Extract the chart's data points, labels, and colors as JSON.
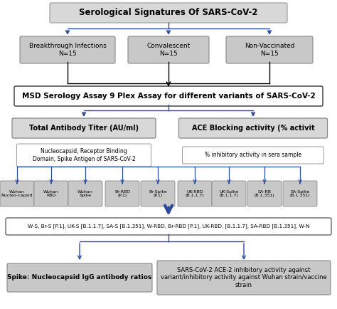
{
  "background_color": "#ffffff",
  "arrow_color_blue": "#2a4a9f",
  "arrow_color_black": "#000000",
  "box_fill_light": "#d8d8d8",
  "box_fill_gray": "#c8c8c8",
  "box_fill_white": "#ffffff",
  "title_box": "Serological Signatures Of SARS-CoV-2",
  "level1_boxes": [
    "Breakthrough Infections\nN=15",
    "Convalescent\nN=15",
    "Non-Vaccinated\nN=15"
  ],
  "level2_box": "MSD Serology Assay 9 Plex Assay for different variants of SARS-CoV-2",
  "level3_left": "Total Antibody Titer (AU/ml)",
  "level3_right": "ACE Blocking activity (% activit",
  "level4_left": "Nucleocapsid, Receptor Binding\nDomain, Spike Antigen of SARS-CoV-2",
  "level4_right": "% inhibitory activity in sera sample",
  "level5_boxes": [
    "Wuhan\nNucleo-capsid",
    "Wuhan\nRBD",
    "Wuhan\nSpike",
    "Br-RBD\n(P.1)",
    "Br-Spike\n(P.1)",
    "UK-RBD\n(B.1.1.7)",
    "UK-Spike\n(B.1.1.7)",
    "SA-RB\n(B.1.351)",
    "SA-Spike\n(B.1.351)"
  ],
  "level6_box": "W-S, Br-S [P.1], UK-S [B.1.1.7], SA-S [B.1.351], W-RBD, Br-RBD [P.1], UK-RBD, [B.1.1.7], SA-RBD [B.1.351], W-N",
  "level7_left": "Spike: Nucleocapsid IgG antibody ratios",
  "level7_right": "SARS-CoV-2 ACE-2 inhibitory activity against\nvariant/inhibitory activity against Wuhan strain/vaccine\nstrain"
}
